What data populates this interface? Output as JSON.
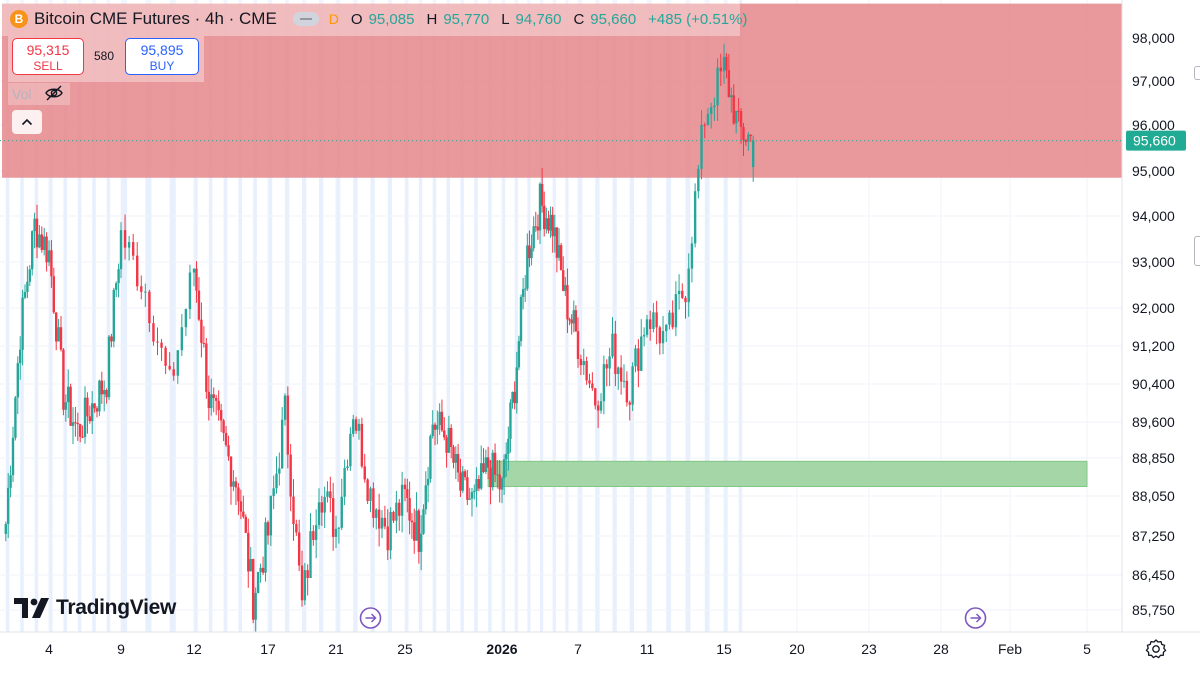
{
  "header": {
    "symbol_icon": "B",
    "title": "Bitcoin CME Futures · 4h · CME",
    "badge": "D",
    "open_label": "O",
    "open_value": "95,085",
    "high_label": "H",
    "high_value": "95,770",
    "low_label": "L",
    "low_value": "94,760",
    "close_label": "C",
    "close_value": "95,660",
    "change": "+485 (+0.51%)"
  },
  "trade": {
    "sell_price": "95,315",
    "sell_label": "SELL",
    "spread": "580",
    "buy_price": "95,895",
    "buy_label": "BUY"
  },
  "volume": {
    "label": "Vol",
    "icon": "eye-crossed-icon"
  },
  "collapse": {
    "icon": "chevron-up-icon"
  },
  "branding": {
    "logo_text": "TradingView"
  },
  "colors": {
    "up": "#26a69a",
    "down": "#f23645",
    "resistance_zone": "#e78d90",
    "support_zone": "#a5d6a7",
    "session_stripe": "#e8f0fd",
    "last_price_tag": "#22ab94"
  },
  "chart_data": {
    "type": "candlestick",
    "symbol": "Bitcoin CME Futures",
    "interval": "4h",
    "exchange": "CME",
    "ylim": [
      85500,
      98500
    ],
    "y_tick_labels": [
      "98,000",
      "97,000",
      "96,000",
      "95,000",
      "94,000",
      "93,000",
      "92,000",
      "91,200",
      "90,400",
      "89,600",
      "88,850",
      "88,050",
      "87,250",
      "86,450",
      "85,750"
    ],
    "y_tick_values": [
      98000,
      97000,
      96000,
      95000,
      94000,
      93000,
      92000,
      91200,
      90400,
      89600,
      88850,
      88050,
      87250,
      86450,
      85750
    ],
    "x_tick_labels": [
      "4",
      "9",
      "12",
      "17",
      "21",
      "25",
      "2026",
      "7",
      "11",
      "15",
      "20",
      "23",
      "28",
      "Feb",
      "5"
    ],
    "x_tick_dates": [
      "2025-12-04",
      "2025-12-09",
      "2025-12-12",
      "2025-12-17",
      "2025-12-21",
      "2025-12-25",
      "2026-01-01",
      "2026-01-07",
      "2026-01-11",
      "2026-01-15",
      "2026-01-20",
      "2026-01-23",
      "2026-01-28",
      "2026-02-01",
      "2026-02-05"
    ],
    "last_price": 95660,
    "last_price_label": "95,660",
    "zones": [
      {
        "name": "resistance-zone",
        "y_low": 94850,
        "y_high": 98800,
        "start": "2025-12-01",
        "end": "2026-02-08"
      },
      {
        "name": "support-zone",
        "y_low": 88250,
        "y_high": 88780,
        "start": "2025-12-31",
        "end": "2026-02-05"
      }
    ],
    "event_markers": [
      "2025-12-23",
      "2026-01-30"
    ],
    "weekend_stripes": true,
    "grid": true,
    "candle_pivots": [
      [
        "2025-12-01",
        87500
      ],
      [
        "2025-12-02",
        91500
      ],
      [
        "2025-12-03",
        93800
      ],
      [
        "2025-12-04",
        93200
      ],
      [
        "2025-12-05",
        90200
      ],
      [
        "2025-12-06",
        89400
      ],
      [
        "2025-12-08",
        90500
      ],
      [
        "2025-12-09",
        93600
      ],
      [
        "2025-12-10",
        92400
      ],
      [
        "2025-12-11",
        90300
      ],
      [
        "2025-12-12",
        92900
      ],
      [
        "2025-12-13",
        90100
      ],
      [
        "2025-12-15",
        88200
      ],
      [
        "2025-12-16",
        86000
      ],
      [
        "2025-12-17",
        87300
      ],
      [
        "2025-12-18",
        89800
      ],
      [
        "2025-12-19",
        85800
      ],
      [
        "2025-12-20",
        88300
      ],
      [
        "2025-12-21",
        87400
      ],
      [
        "2025-12-22",
        89900
      ],
      [
        "2025-12-23",
        88100
      ],
      [
        "2025-12-24",
        87400
      ],
      [
        "2025-12-25",
        88000
      ],
      [
        "2025-12-26",
        87300
      ],
      [
        "2025-12-27",
        89600
      ],
      [
        "2025-12-28",
        89300
      ],
      [
        "2025-12-29",
        88200
      ],
      [
        "2025-12-30",
        87900
      ],
      [
        "2025-12-31",
        88700
      ],
      [
        "2026-01-01",
        88200
      ],
      [
        "2026-01-02",
        90400
      ],
      [
        "2026-01-03",
        93200
      ],
      [
        "2026-01-04",
        94300
      ],
      [
        "2026-01-05",
        93800
      ],
      [
        "2026-01-06",
        92200
      ],
      [
        "2026-01-07",
        91300
      ],
      [
        "2026-01-08",
        90100
      ],
      [
        "2026-01-09",
        91100
      ],
      [
        "2026-01-10",
        90300
      ],
      [
        "2026-01-11",
        91900
      ],
      [
        "2026-01-12",
        91300
      ],
      [
        "2026-01-13",
        92500
      ],
      [
        "2026-01-14",
        96200
      ],
      [
        "2026-01-15",
        97300
      ],
      [
        "2026-01-16",
        95900
      ],
      [
        "2026-01-17",
        95660
      ]
    ]
  }
}
